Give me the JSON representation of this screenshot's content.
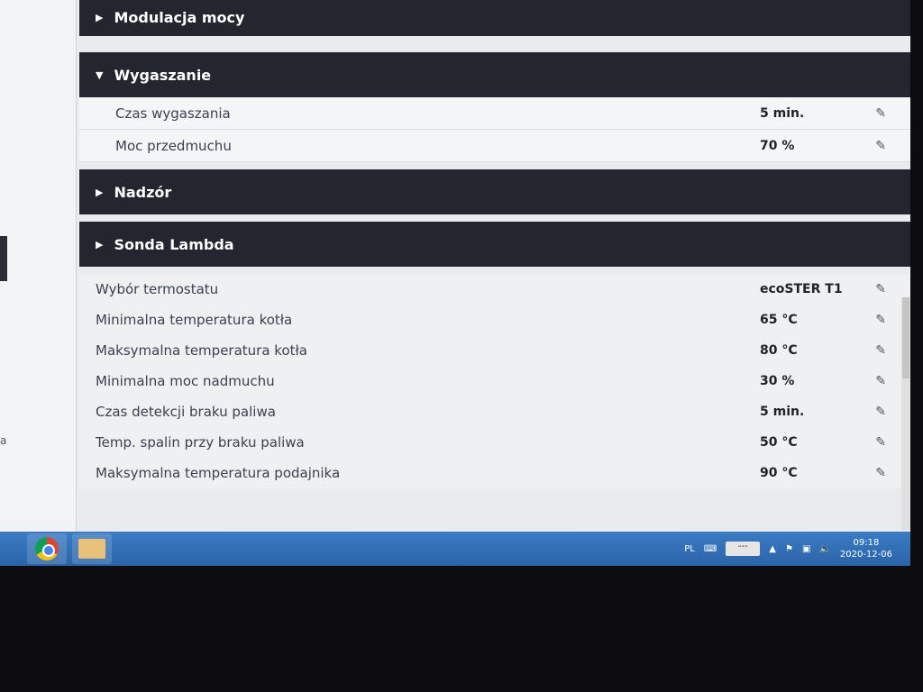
{
  "sections": [
    {
      "title": "Modulacja mocy",
      "expanded": false
    },
    {
      "title": "Wygaszanie",
      "expanded": true,
      "rows": [
        {
          "label": "Czas wygaszania",
          "value": "5 min."
        },
        {
          "label": "Moc przedmuchu",
          "value": "70 %"
        }
      ]
    },
    {
      "title": "Nadzór",
      "expanded": false
    },
    {
      "title": "Sonda Lambda",
      "expanded": false
    }
  ],
  "settings": [
    {
      "label": "Wybór termostatu",
      "value": "ecoSTER T1"
    },
    {
      "label": "Minimalna temperatura kotła",
      "value": "65 °C"
    },
    {
      "label": "Maksymalna temperatura kotła",
      "value": "80 °C"
    },
    {
      "label": "Minimalna moc nadmuchu",
      "value": "30 %"
    },
    {
      "label": "Czas detekcji braku paliwa",
      "value": "5 min."
    },
    {
      "label": "Temp. spalin przy braku paliwa",
      "value": "50 °C"
    },
    {
      "label": "Maksymalna temperatura podajnika",
      "value": "90 °C"
    }
  ],
  "left_fragment": "a",
  "taskbar": {
    "language": "PL",
    "battery": "---",
    "time": "09:18",
    "date": "2020-12-06"
  }
}
